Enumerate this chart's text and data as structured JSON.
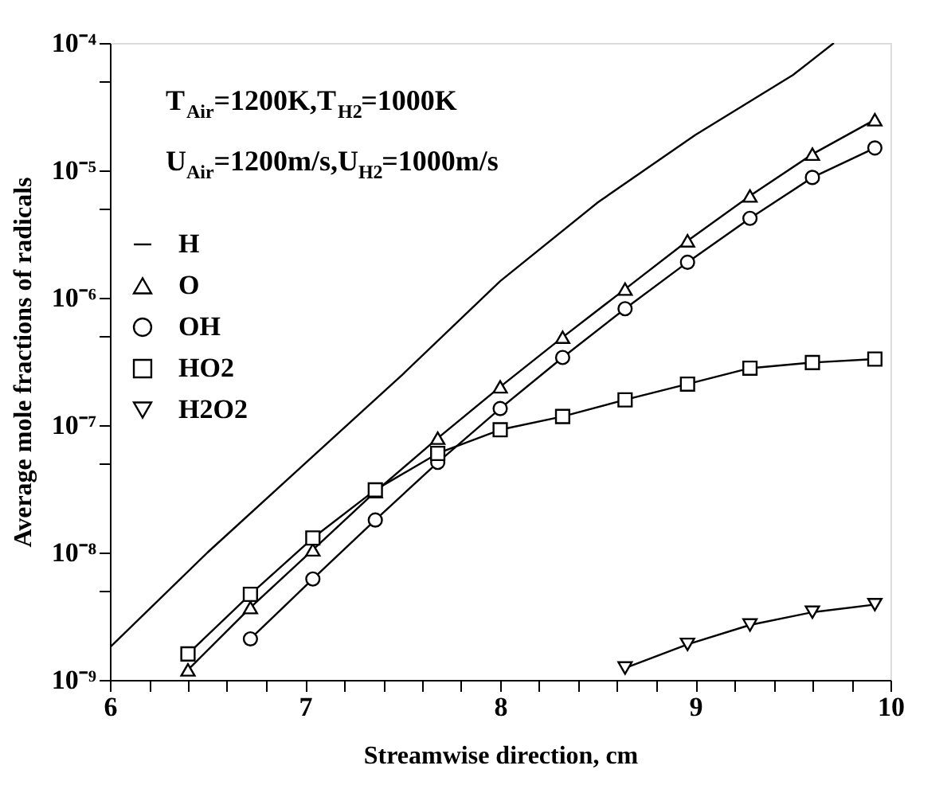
{
  "chart_data": {
    "type": "line",
    "xlabel": "Streamwise direction, cm",
    "ylabel": "Average mole fractions of radicals",
    "annotations": [
      "T$_{Air}$=1200K,T$_{H2}$=1000K",
      "U$_{Air}$=1200m/s,U$_{H2}$=1000m/s"
    ],
    "x": [
      6.4,
      6.72,
      7.04,
      7.36,
      7.68,
      8.0,
      8.32,
      8.64,
      8.96,
      9.28,
      9.6,
      9.92
    ],
    "series": [
      {
        "name": "H",
        "color": "#000000",
        "marker": "none",
        "x": [
          6.0,
          6.5,
          7.0,
          7.5,
          8.0,
          8.5,
          9.0,
          9.5,
          9.71
        ],
        "values": [
          1.8e-09,
          1e-08,
          5e-08,
          2.5e-07,
          1.35e-06,
          5.6e-06,
          1.9e-05,
          5.6e-05,
          0.0001
        ]
      },
      {
        "name": "O",
        "color": "#000000",
        "marker": "triangle",
        "values": [
          1.2e-09,
          3.7e-09,
          1.05e-08,
          3e-08,
          7.9e-08,
          2e-07,
          4.9e-07,
          1.17e-06,
          2.8e-06,
          6.3e-06,
          1.34e-05,
          2.5e-05
        ]
      },
      {
        "name": "OH",
        "color": "#000000",
        "marker": "circle",
        "values": [
          null,
          2.1e-09,
          6.2e-09,
          1.8e-08,
          5.1e-08,
          1.35e-07,
          3.4e-07,
          8.2e-07,
          1.9e-06,
          4.2e-06,
          8.8e-06,
          1.5e-05
        ]
      },
      {
        "name": "HO2",
        "color": "#000000",
        "marker": "square",
        "values": [
          1.6e-09,
          4.7e-09,
          1.3e-08,
          3.1e-08,
          6e-08,
          9.2e-08,
          1.17e-07,
          1.58e-07,
          2.1e-07,
          2.8e-07,
          3.1e-07,
          3.3e-07
        ]
      },
      {
        "name": "H2O2",
        "color": "#000000",
        "marker": "triangle-down",
        "values": [
          null,
          null,
          null,
          null,
          null,
          null,
          null,
          1.24e-09,
          1.9e-09,
          2.7e-09,
          3.4e-09,
          3.9e-09
        ]
      }
    ],
    "xlim": [
      6,
      10
    ],
    "xticks": [
      6,
      {
        "value": 6.2,
        "label": null
      },
      {
        "value": 6.4,
        "label": null
      },
      {
        "value": 6.6,
        "label": null
      },
      {
        "value": 6.8,
        "label": null
      },
      7,
      {
        "value": 7.2,
        "label": null
      },
      {
        "value": 7.4,
        "label": null
      },
      {
        "value": 7.6,
        "label": null
      },
      {
        "value": 7.8,
        "label": null
      },
      8,
      {
        "value": 8.2,
        "label": null
      },
      {
        "value": 8.4,
        "label": null
      },
      {
        "value": 8.6,
        "label": null
      },
      {
        "value": 8.8,
        "label": null
      },
      9,
      {
        "value": 9.2,
        "label": null
      },
      {
        "value": 9.4,
        "label": null
      },
      {
        "value": 9.6,
        "label": null
      },
      {
        "value": 9.8,
        "label": null
      },
      10
    ],
    "ylim": [
      1e-09,
      0.0001
    ],
    "yticks": [
      {
        "value": 1e-09,
        "label": "10⁻⁹"
      },
      {
        "value": 5e-09,
        "label": null
      },
      {
        "value": 1e-08,
        "label": "10⁻⁸"
      },
      {
        "value": 5e-08,
        "label": null
      },
      {
        "value": 1e-07,
        "label": "10⁻⁷"
      },
      {
        "value": 5e-07,
        "label": null
      },
      {
        "value": 1e-06,
        "label": "10⁻⁶"
      },
      {
        "value": 5e-06,
        "label": null
      },
      {
        "value": 1e-05,
        "label": "10⁻⁵"
      },
      {
        "value": 5e-05,
        "label": null
      },
      {
        "value": 0.0001,
        "label": "10⁻⁴"
      }
    ],
    "log": "y",
    "grid": false,
    "legend": "left",
    "line_style": "solid"
  }
}
